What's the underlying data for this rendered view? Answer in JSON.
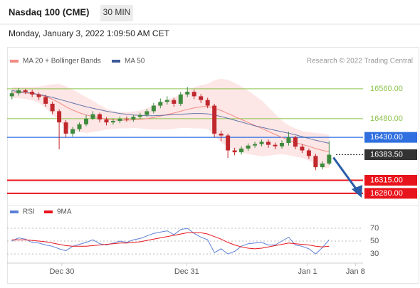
{
  "header": {
    "title": "Nasdaq 100 (CME)",
    "interval": "30 MIN",
    "timestamp": "Monday, January 3, 2022 1:09:50 AM CET",
    "credit": "Research © 2022 Trading Central"
  },
  "chart_data": [
    {
      "type": "candlestick",
      "legend": [
        {
          "name": "MA 20 + Bollinger Bands",
          "color": "#f28b82"
        },
        {
          "name": "MA 50",
          "color": "#3c5a99"
        }
      ],
      "open": [
        16540,
        16548,
        16556,
        16552,
        16545,
        16538,
        16520,
        16500,
        16470,
        16440,
        16452,
        16465,
        16480,
        16492,
        16478,
        16470,
        16474,
        16480,
        16478,
        16485,
        16490,
        16500,
        16515,
        16525,
        16530,
        16520,
        16545,
        16552,
        16540,
        16530,
        16515,
        16440,
        16435,
        16395,
        16390,
        16400,
        16408,
        16412,
        16418,
        16410,
        16406,
        16415,
        16430,
        16405,
        16395,
        16380,
        16350,
        16360
      ],
      "high": [
        16556,
        16562,
        16560,
        16558,
        16550,
        16544,
        16526,
        16505,
        16476,
        16458,
        16470,
        16490,
        16500,
        16496,
        16484,
        16480,
        16486,
        16486,
        16490,
        16496,
        16506,
        16522,
        16534,
        16540,
        16536,
        16552,
        16565,
        16558,
        16546,
        16536,
        16520,
        16448,
        16440,
        16402,
        16406,
        16414,
        16418,
        16424,
        16424,
        16416,
        16422,
        16445,
        16434,
        16412,
        16400,
        16386,
        16366,
        16420
      ],
      "low": [
        16532,
        16542,
        16546,
        16538,
        16530,
        16512,
        16492,
        16398,
        16430,
        16432,
        16446,
        16460,
        16476,
        16470,
        16462,
        16464,
        16468,
        16472,
        16472,
        16480,
        16484,
        16494,
        16508,
        16518,
        16512,
        16514,
        16538,
        16532,
        16522,
        16508,
        16430,
        16420,
        16375,
        16382,
        16384,
        16394,
        16402,
        16406,
        16402,
        16398,
        16400,
        16408,
        16398,
        16388,
        16372,
        16342,
        16344,
        16356
      ],
      "close": [
        16548,
        16556,
        16552,
        16545,
        16538,
        16520,
        16500,
        16470,
        16440,
        16452,
        16465,
        16480,
        16492,
        16478,
        16470,
        16474,
        16480,
        16478,
        16485,
        16490,
        16500,
        16515,
        16525,
        16530,
        16520,
        16545,
        16552,
        16540,
        16530,
        16515,
        16440,
        16435,
        16395,
        16390,
        16400,
        16408,
        16412,
        16418,
        16410,
        16406,
        16415,
        16430,
        16405,
        16395,
        16380,
        16350,
        16360,
        16383.5
      ],
      "ma20": [
        16550,
        16550,
        16549,
        16547,
        16544,
        16539,
        16532,
        16523,
        16512,
        16503,
        16496,
        16490,
        16486,
        16482,
        16479,
        16477,
        16476,
        16476,
        16477,
        16478,
        16480,
        16483,
        16487,
        16491,
        16495,
        16500,
        16505,
        16509,
        16512,
        16513,
        16508,
        16502,
        16494,
        16486,
        16478,
        16470,
        16462,
        16454,
        16446,
        16438,
        16430,
        16422,
        16416,
        16411,
        16406,
        16400,
        16395,
        16392
      ],
      "upper": [
        16565,
        16565,
        16565,
        16565,
        16566,
        16569,
        16572,
        16573,
        16567,
        16558,
        16548,
        16538,
        16528,
        16517,
        16507,
        16501,
        16498,
        16498,
        16499,
        16502,
        16508,
        16515,
        16523,
        16531,
        16537,
        16545,
        16555,
        16564,
        16570,
        16573,
        16583,
        16587,
        16584,
        16576,
        16566,
        16555,
        16542,
        16529,
        16511,
        16493,
        16475,
        16462,
        16454,
        16447,
        16444,
        16442,
        16440,
        16437
      ],
      "lower": [
        16535,
        16535,
        16533,
        16529,
        16522,
        16509,
        16492,
        16473,
        16457,
        16448,
        16444,
        16442,
        16444,
        16447,
        16451,
        16453,
        16454,
        16454,
        16455,
        16454,
        16452,
        16451,
        16451,
        16451,
        16453,
        16455,
        16455,
        16454,
        16454,
        16453,
        16433,
        16417,
        16404,
        16396,
        16390,
        16385,
        16382,
        16379,
        16381,
        16383,
        16385,
        16382,
        16378,
        16375,
        16368,
        16358,
        16350,
        16347
      ],
      "ma50": [
        16555,
        16553,
        16551,
        16548,
        16545,
        16541,
        16537,
        16532,
        16527,
        16522,
        16517,
        16512,
        16508,
        16504,
        16500,
        16497,
        16494,
        16492,
        16490,
        16489,
        16488,
        16488,
        16489,
        16490,
        16491,
        16492,
        16493,
        16494,
        16494,
        16493,
        16490,
        16486,
        16481,
        16476,
        16471,
        16466,
        16461,
        16457,
        16453,
        16449,
        16445,
        16441,
        16437,
        16432,
        16427,
        16422,
        16418,
        16414
      ],
      "up_color": "#3d8b3d",
      "down_color": "#c0282d",
      "xlim": [
        -0.5,
        51.5
      ],
      "ylim": [
        16255,
        16617
      ],
      "levels": [
        {
          "value": 16560,
          "label": "16560.00",
          "color": "#8bc34a",
          "boxed": false
        },
        {
          "value": 16480,
          "label": "16480.00",
          "color": "#8bc34a",
          "boxed": false
        },
        {
          "value": 16430,
          "label": "16430.00",
          "color": "#2f6fe0",
          "boxed": true
        },
        {
          "value": 16383.5,
          "label": "16383.50",
          "color": "#333333",
          "boxed": true
        },
        {
          "value": 16315,
          "label": "16315.00",
          "color": "#e8141c",
          "boxed": true
        },
        {
          "value": 16280,
          "label": "16280.00",
          "color": "#e8141c",
          "boxed": true
        }
      ]
    },
    {
      "type": "line",
      "series": [
        {
          "name": "RSI",
          "color": "#5b7fd6",
          "values": [
            50,
            55,
            53,
            48,
            47,
            44,
            42,
            38,
            35,
            42,
            45,
            48,
            52,
            46,
            44,
            47,
            50,
            48,
            52,
            54,
            58,
            62,
            64,
            66,
            60,
            68,
            70,
            62,
            56,
            52,
            32,
            38,
            30,
            34,
            42,
            46,
            47,
            48,
            44,
            44,
            50,
            56,
            44,
            42,
            38,
            30,
            40,
            52
          ]
        },
        {
          "name": "9MA",
          "color": "#e8141c",
          "values": [
            52,
            52,
            52,
            51,
            50,
            49,
            47,
            45,
            43,
            42,
            42,
            42,
            43,
            44,
            45,
            46,
            47,
            47,
            48,
            49,
            51,
            53,
            55,
            57,
            59,
            61,
            63,
            63,
            63,
            61,
            57,
            53,
            48,
            44,
            41,
            39,
            38,
            39,
            41,
            43,
            45,
            47,
            46,
            45,
            44,
            42,
            41,
            42
          ]
        }
      ],
      "xlim": [
        -0.5,
        51.5
      ],
      "ylim": [
        19,
        80
      ],
      "yticks": [
        30,
        50,
        70
      ],
      "xticks": [
        {
          "value": 7.4,
          "label": "Dec 30"
        },
        {
          "value": 25.9,
          "label": "Dec 31"
        },
        {
          "value": 43.8,
          "label": "Jan 1"
        },
        {
          "value": 50.9,
          "label": "Jan 8"
        }
      ]
    }
  ]
}
